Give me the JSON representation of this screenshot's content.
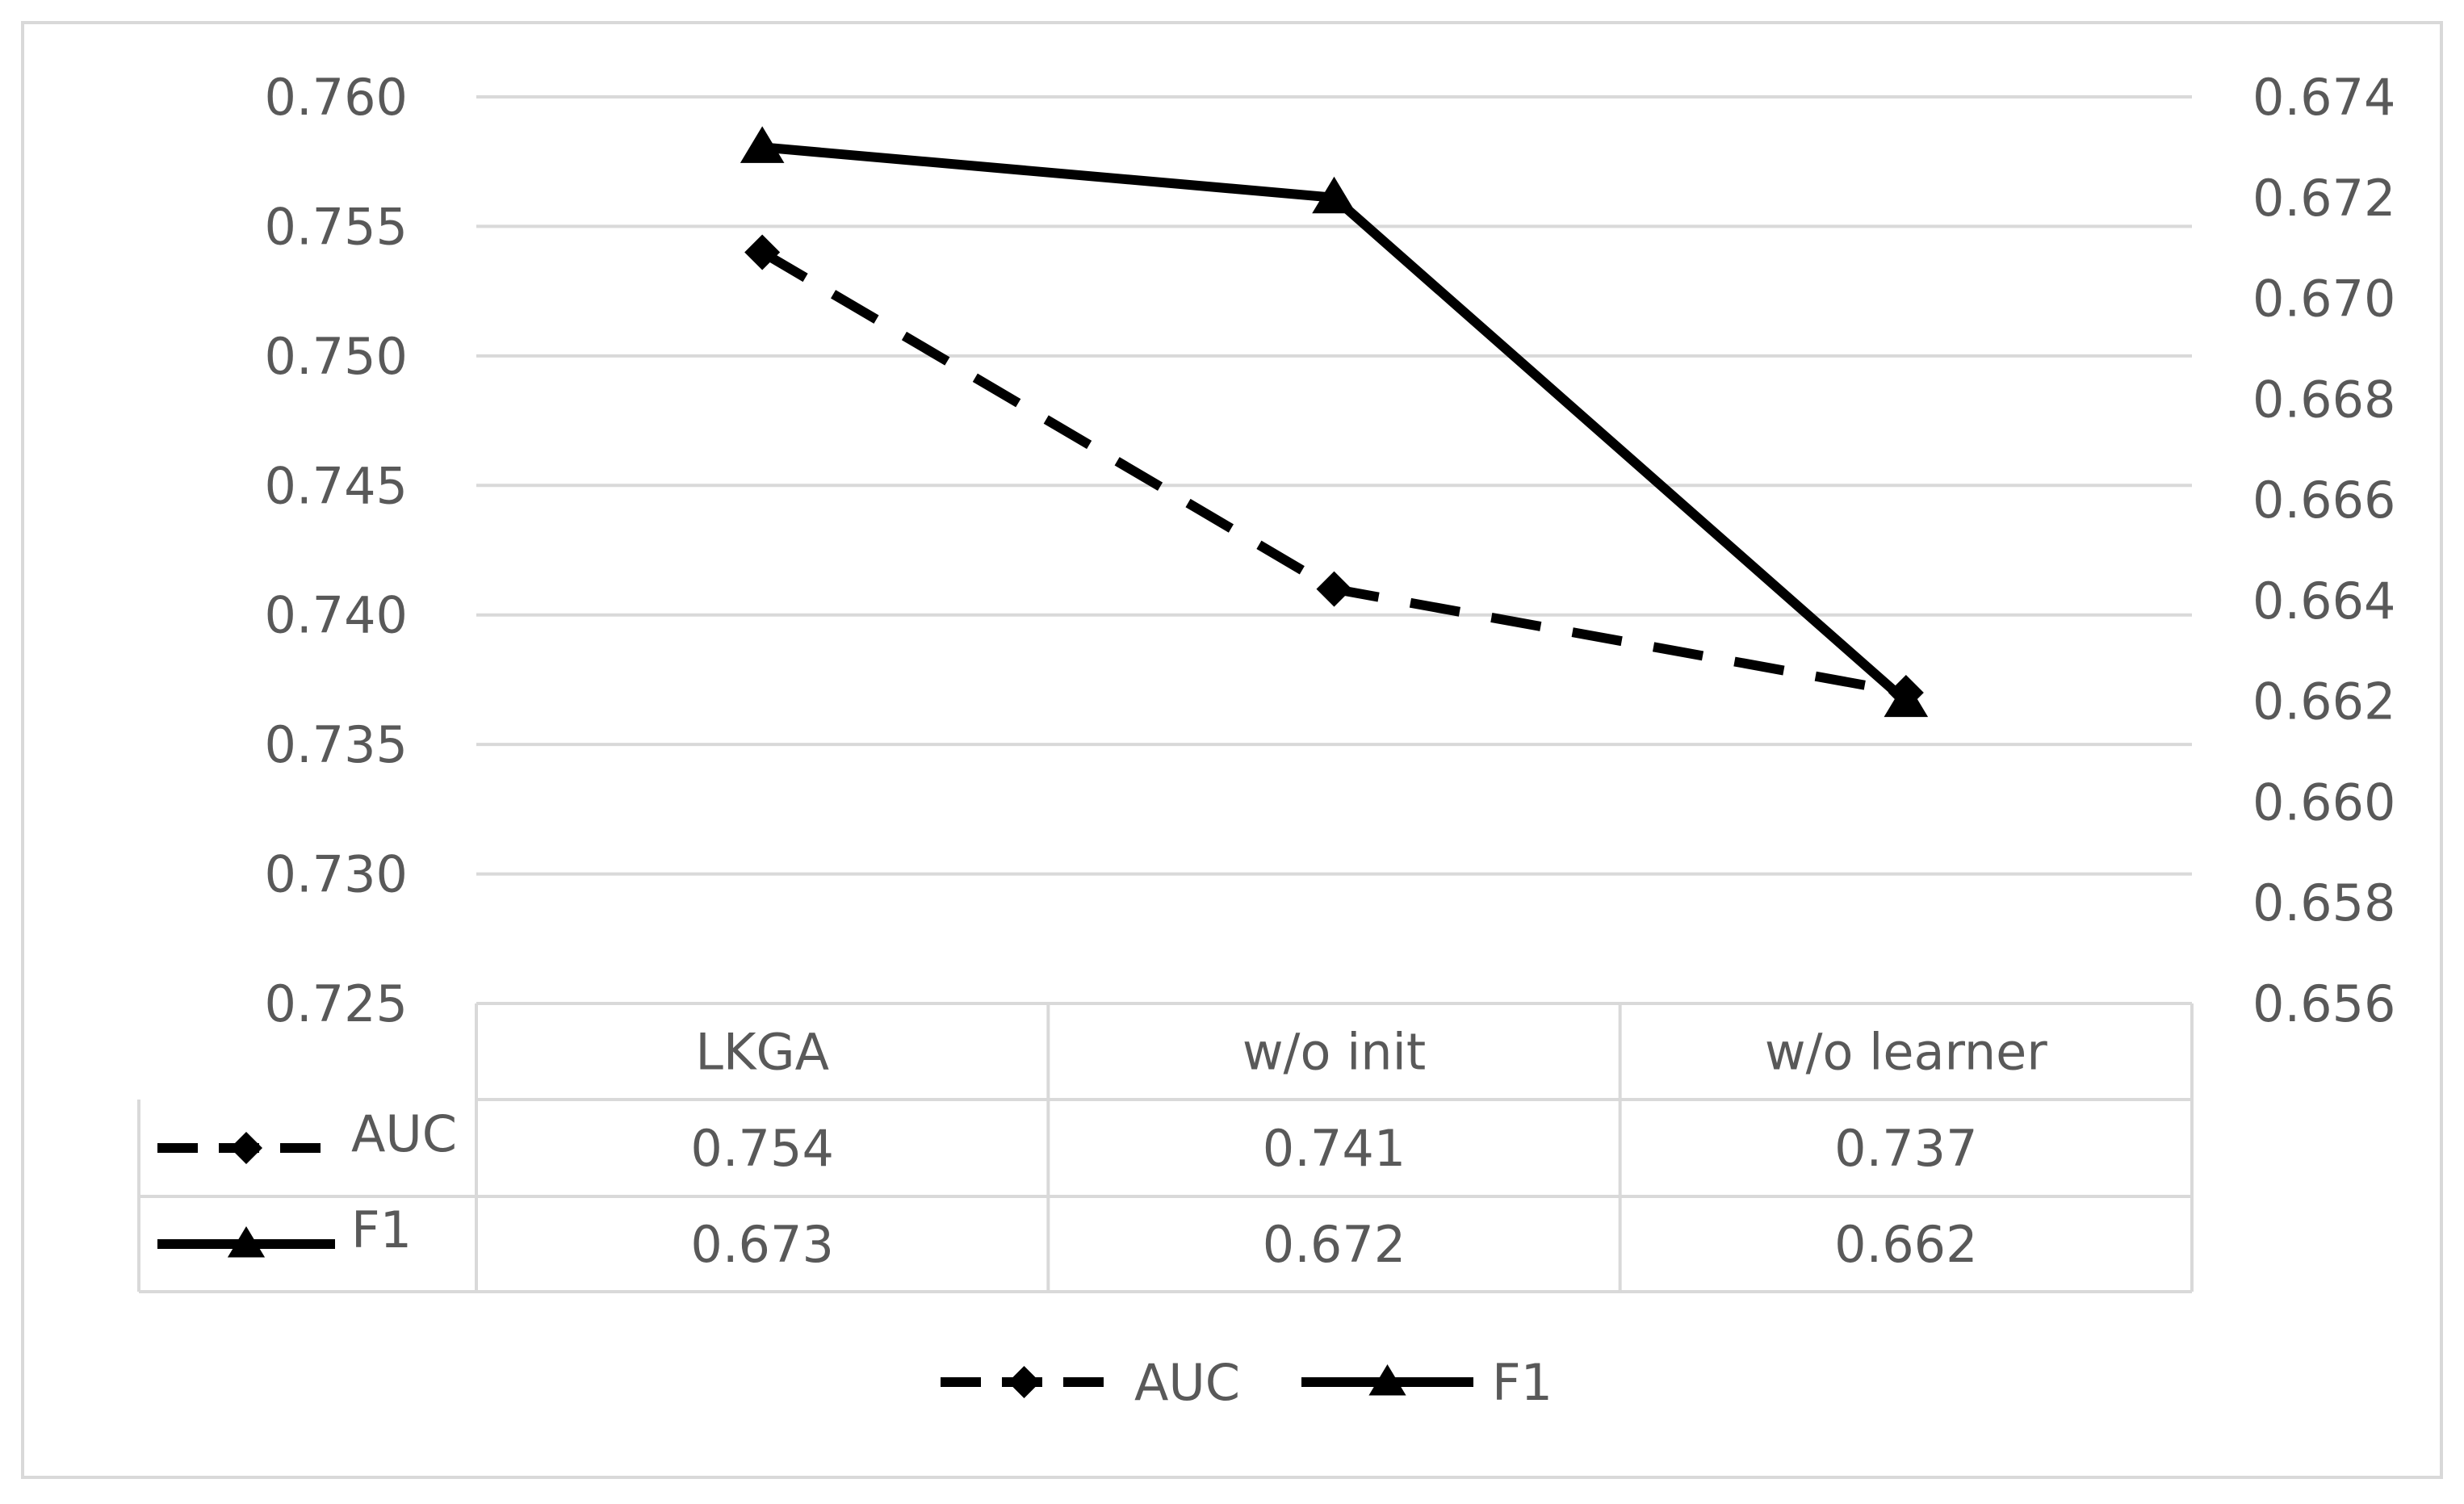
{
  "chart_data": {
    "type": "line",
    "categories": [
      "LKGA",
      "w/o init",
      "w/o learner"
    ],
    "series": [
      {
        "name": "AUC",
        "values": [
          0.754,
          0.741,
          0.737
        ],
        "axis": "left",
        "style": "dashed",
        "marker": "diamond"
      },
      {
        "name": "F1",
        "values": [
          0.673,
          0.672,
          0.662
        ],
        "axis": "right",
        "style": "solid",
        "marker": "triangle"
      }
    ],
    "y_left": {
      "ylim": [
        0.725,
        0.76
      ],
      "ticks": [
        "0.760",
        "0.755",
        "0.750",
        "0.745",
        "0.740",
        "0.735",
        "0.730",
        "0.725"
      ]
    },
    "y_right": {
      "ylim": [
        0.656,
        0.674
      ],
      "ticks": [
        "0.674",
        "0.672",
        "0.670",
        "0.668",
        "0.666",
        "0.664",
        "0.662",
        "0.660",
        "0.658",
        "0.656"
      ]
    },
    "data_table": {
      "rows": [
        {
          "label": "AUC",
          "cells": [
            "0.754",
            "0.741",
            "0.737"
          ]
        },
        {
          "label": "F1",
          "cells": [
            "0.673",
            "0.672",
            "0.662"
          ]
        }
      ]
    },
    "grid": true,
    "legend": "bottom",
    "colors": {
      "line": "#000000",
      "grid": "#d9d9d9",
      "text": "#595959",
      "border": "#d9d9d9"
    }
  }
}
